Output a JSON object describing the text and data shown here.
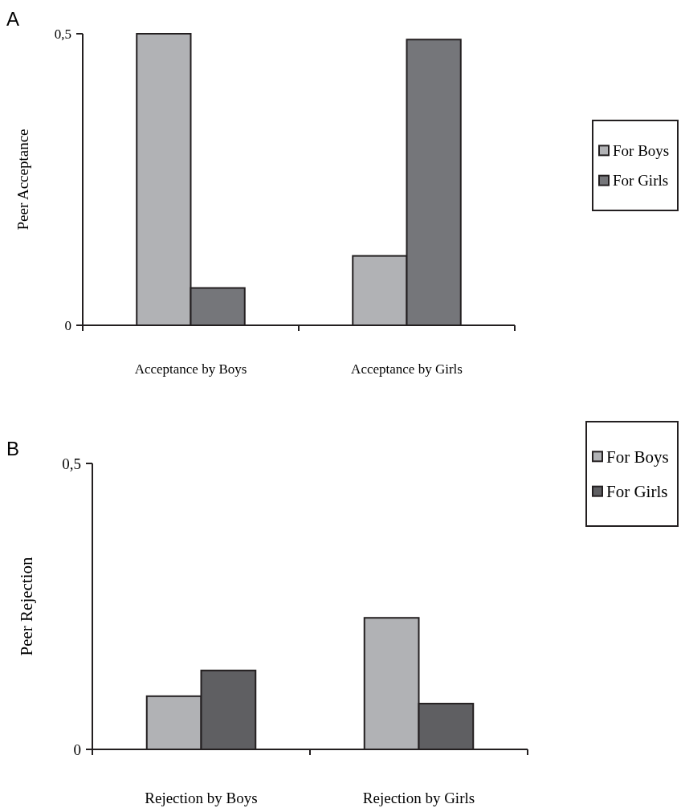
{
  "chart_data": [
    {
      "type": "bar",
      "title": "A",
      "ylabel": "Peer Acceptance",
      "categories": [
        "Acceptance by Boys",
        "Acceptance by Girls"
      ],
      "series": [
        {
          "name": "For Boys",
          "color": "#b1b2b5",
          "values": [
            0.5,
            0.119
          ]
        },
        {
          "name": "For Girls",
          "color": "#75767a",
          "values": [
            0.064,
            0.49
          ]
        }
      ],
      "ylim": [
        0,
        0.5
      ],
      "yticks": [
        0,
        {
          "value": 0.5,
          "label": "0,5"
        }
      ],
      "legend": "right",
      "grid": false
    },
    {
      "type": "bar",
      "title": "B",
      "ylabel": "Peer Rejection",
      "categories": [
        "Rejection by Boys",
        "Rejection by Girls"
      ],
      "series": [
        {
          "name": "For Boys",
          "color": "#b1b2b5",
          "values": [
            0.093,
            0.23
          ]
        },
        {
          "name": "For Girls",
          "color": "#5f5f62",
          "values": [
            0.138,
            0.08
          ]
        }
      ],
      "ylim": [
        0,
        0.5
      ],
      "yticks": [
        0,
        {
          "value": 0.5,
          "label": "0,5"
        }
      ],
      "legend": "right",
      "grid": false
    }
  ]
}
